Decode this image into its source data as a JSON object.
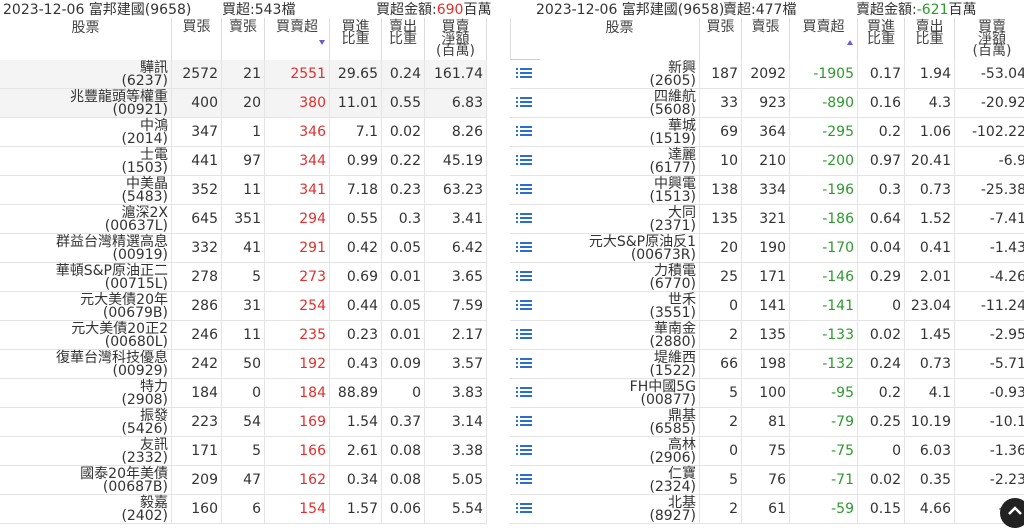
{
  "left": {
    "date": "2023-12-06 富邦建國(9658)",
    "count": "買超:543檔",
    "amount_prefix": "買超金額:",
    "amount": "690",
    "amount_unit": "百萬",
    "columns": [
      [
        "股票"
      ],
      [
        "買張"
      ],
      [
        "賣張"
      ],
      [
        "買賣超"
      ],
      [
        "買進",
        "比重"
      ],
      [
        "賣出",
        "比重"
      ],
      [
        "買賣",
        "淨額",
        "(百萬)"
      ]
    ],
    "rows": [
      [
        "驊訊",
        "(6237)",
        2572,
        21,
        2551,
        29.65,
        0.24,
        161.74
      ],
      [
        "兆豐龍頭等權重",
        "(00921)",
        400,
        20,
        380,
        11.01,
        0.55,
        6.83
      ],
      [
        "中鴻",
        "(2014)",
        347,
        1,
        346,
        7.1,
        0.02,
        8.26
      ],
      [
        "士電",
        "(1503)",
        441,
        97,
        344,
        0.99,
        0.22,
        45.19
      ],
      [
        "中美晶",
        "(5483)",
        352,
        11,
        341,
        7.18,
        0.23,
        63.23
      ],
      [
        "滬深2X",
        "(00637L)",
        645,
        351,
        294,
        0.55,
        0.3,
        3.41
      ],
      [
        "群益台灣精選高息",
        "(00919)",
        332,
        41,
        291,
        0.42,
        0.05,
        6.42
      ],
      [
        "華頓S&P原油正二",
        "(00715L)",
        278,
        5,
        273,
        0.69,
        0.01,
        3.65
      ],
      [
        "元大美債20年",
        "(00679B)",
        286,
        31,
        254,
        0.44,
        0.05,
        7.59
      ],
      [
        "元大美債20正2",
        "(00680L)",
        246,
        11,
        235,
        0.23,
        0.01,
        2.17
      ],
      [
        "復華台灣科技優息",
        "(00929)",
        242,
        50,
        192,
        0.43,
        0.09,
        3.57
      ],
      [
        "特力",
        "(2908)",
        184,
        0,
        184,
        88.89,
        0,
        3.83
      ],
      [
        "振發",
        "(5426)",
        223,
        54,
        169,
        1.54,
        0.37,
        3.14
      ],
      [
        "友訊",
        "(2332)",
        171,
        5,
        166,
        2.61,
        0.08,
        3.38
      ],
      [
        "國泰20年美債",
        "(00687B)",
        209,
        47,
        162,
        0.34,
        0.08,
        5.05
      ],
      [
        "毅嘉",
        "(2402)",
        160,
        6,
        154,
        1.57,
        0.06,
        5.54
      ]
    ]
  },
  "right": {
    "date": "2023-12-06 富邦建國(9658)",
    "count": "賣超:477檔",
    "amount_prefix": "賣超金額:",
    "amount": "-621",
    "amount_unit": "百萬",
    "columns": [
      [
        "股票"
      ],
      [
        "買張"
      ],
      [
        "賣張"
      ],
      [
        "買賣超"
      ],
      [
        "買進",
        "比重"
      ],
      [
        "賣出",
        "比重"
      ],
      [
        "買賣",
        "淨額",
        "(百萬)"
      ]
    ],
    "rows": [
      [
        "新興",
        "(2605)",
        187,
        2092,
        -1905,
        0.17,
        1.94,
        -53.04
      ],
      [
        "四維航",
        "(5608)",
        33,
        923,
        -890,
        0.16,
        4.3,
        -20.92
      ],
      [
        "華城",
        "(1519)",
        69,
        364,
        -295,
        0.2,
        1.06,
        -102.22
      ],
      [
        "達麗",
        "(6177)",
        10,
        210,
        -200,
        0.97,
        20.41,
        -6.9
      ],
      [
        "中興電",
        "(1513)",
        138,
        334,
        -196,
        0.3,
        0.73,
        -25.38
      ],
      [
        "大同",
        "(2371)",
        135,
        321,
        -186,
        0.64,
        1.52,
        -7.41
      ],
      [
        "元大S&P原油反1",
        "(00673R)",
        20,
        190,
        -170,
        0.04,
        0.41,
        -1.43
      ],
      [
        "力積電",
        "(6770)",
        25,
        171,
        -146,
        0.29,
        2.01,
        -4.26
      ],
      [
        "世禾",
        "(3551)",
        0,
        141,
        -141,
        0,
        23.04,
        -11.24
      ],
      [
        "華南金",
        "(2880)",
        2,
        135,
        -133,
        0.02,
        1.45,
        -2.95
      ],
      [
        "堤維西",
        "(1522)",
        66,
        198,
        -132,
        0.24,
        0.73,
        -5.71
      ],
      [
        "FH中國5G",
        "(00877)",
        5,
        100,
        -95,
        0.2,
        4.1,
        -0.93
      ],
      [
        "鼎基",
        "(6585)",
        2,
        81,
        -79,
        0.25,
        10.19,
        -10.1
      ],
      [
        "高林",
        "(2906)",
        0,
        75,
        -75,
        0,
        6.03,
        -1.36
      ],
      [
        "仁寶",
        "(2324)",
        5,
        76,
        -71,
        0.02,
        0.35,
        -2.23
      ],
      [
        "北基",
        "(8927)",
        2,
        61,
        -59,
        0.15,
        4.66,
        -2.6
      ]
    ]
  }
}
